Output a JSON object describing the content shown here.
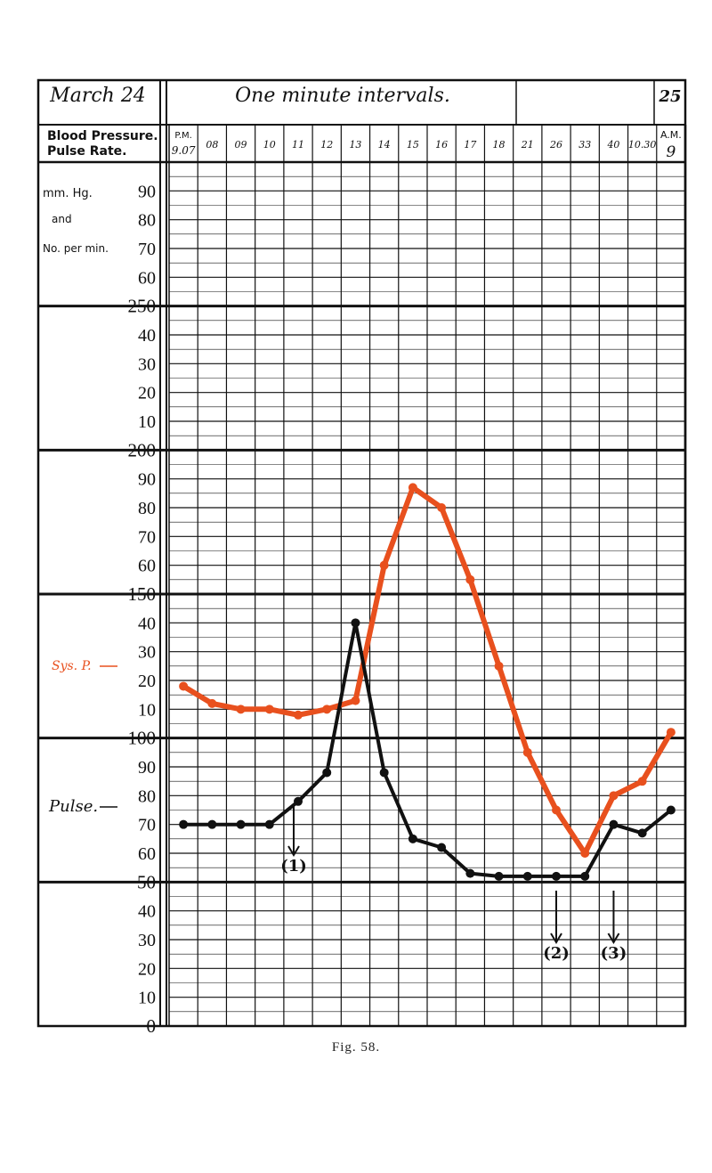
{
  "header": {
    "date": "March 24",
    "title": "One minute intervals.",
    "day": "25",
    "left_label_line1": "Blood Pressure.",
    "left_label_line2": "Pulse Rate.",
    "am_label": "A.M."
  },
  "time_labels": [
    "P.M. 9.07",
    "08",
    "09",
    "10",
    "11",
    "12",
    "13",
    "14",
    "15",
    "16",
    "17",
    "18",
    "21",
    "26",
    "33",
    "40",
    "10.30",
    "9"
  ],
  "axis": {
    "unit_line1": "mm. Hg.",
    "unit_line2": "and",
    "unit_line3": "No. per min.",
    "labels": [
      "90",
      "80",
      "70",
      "60",
      "250",
      "40",
      "30",
      "20",
      "10",
      "200",
      "90",
      "80",
      "70",
      "60",
      "150",
      "40",
      "30",
      "20",
      "10",
      "100",
      "90",
      "80",
      "70",
      "60",
      "50",
      "40",
      "30",
      "20",
      "10",
      "0"
    ]
  },
  "annotations": {
    "systolic_label": "Sys. P.",
    "pulse_label": "Pulse.",
    "markers": [
      "(1)",
      "(2)",
      "(3)"
    ]
  },
  "caption": "Fig. 58.",
  "colors": {
    "systolic": "#e8501e",
    "pulse": "#111111",
    "grid": "#111111"
  },
  "chart_data": {
    "type": "line",
    "title": "One minute intervals.",
    "ylim": [
      0,
      290
    ],
    "categories": [
      "9.07",
      "08",
      "09",
      "10",
      "11",
      "12",
      "13",
      "14",
      "15",
      "16",
      "17",
      "18",
      "21",
      "26",
      "33",
      "40",
      "10.30",
      "9"
    ],
    "series": [
      {
        "name": "Sys. P.",
        "values": [
          118,
          112,
          110,
          110,
          108,
          110,
          113,
          160,
          187,
          180,
          155,
          125,
          95,
          75,
          60,
          80,
          85,
          102
        ]
      },
      {
        "name": "Pulse.",
        "values": [
          70,
          70,
          70,
          70,
          78,
          88,
          140,
          88,
          65,
          62,
          53,
          52,
          52,
          52,
          52,
          70,
          67,
          75
        ]
      }
    ],
    "annotation_points": [
      {
        "label": "(1)",
        "x": "11"
      },
      {
        "label": "(2)",
        "x": "26"
      },
      {
        "label": "(3)",
        "x": "40"
      }
    ]
  }
}
